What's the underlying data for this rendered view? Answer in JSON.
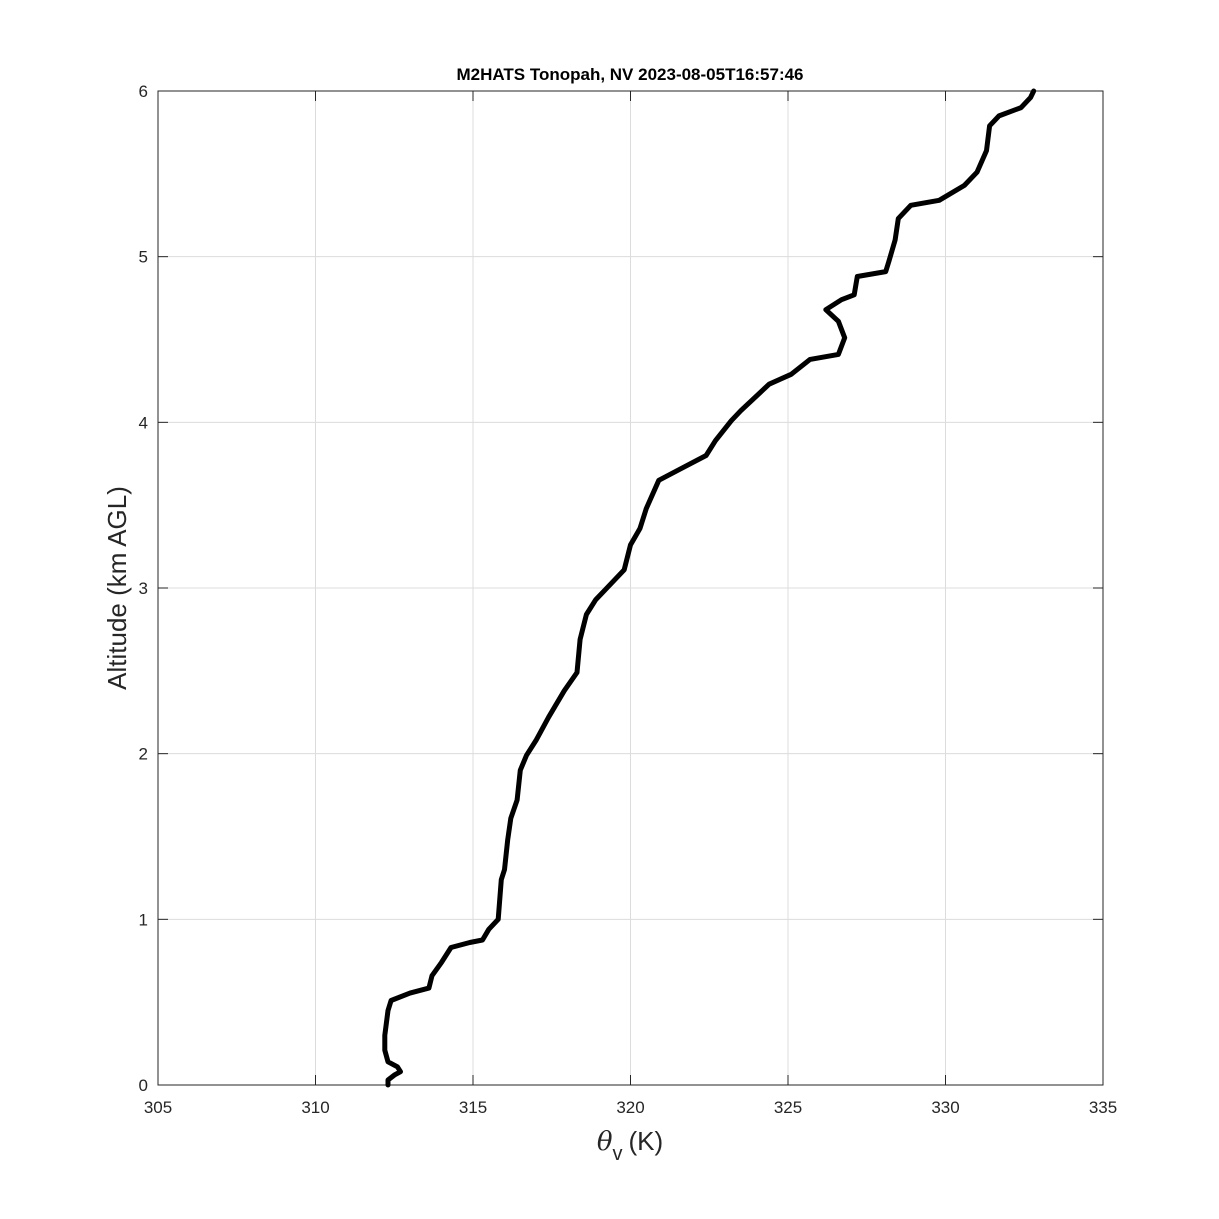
{
  "chart_data": {
    "type": "line",
    "title": "M2HATS Tonopah, NV 2023-08-05T16:57:46",
    "xlabel_symbol": "θ",
    "xlabel_subscript": "v",
    "xlabel_unit": "(K)",
    "ylabel": "Altitude (km AGL)",
    "xlim": [
      305,
      335
    ],
    "ylim": [
      0,
      6
    ],
    "xticks": [
      "305",
      "310",
      "315",
      "320",
      "325",
      "330",
      "335"
    ],
    "yticks": [
      "0",
      "1",
      "2",
      "3",
      "4",
      "5",
      "6"
    ],
    "grid": true,
    "line_color": "#000000",
    "series": [
      {
        "x": [
          312.3,
          312.3,
          312.5,
          312.7,
          312.6,
          312.3,
          312.2,
          312.2,
          312.3,
          312.4,
          313.0,
          313.6,
          313.7,
          314.0,
          314.3,
          314.9,
          315.3,
          315.5,
          315.8,
          315.9,
          316.0,
          316.1,
          316.2,
          316.4,
          316.5,
          316.7,
          317.0,
          317.4,
          317.9,
          318.3,
          318.4,
          318.6,
          318.9,
          319.2,
          319.8,
          320.0,
          320.3,
          320.5,
          320.9,
          321.6,
          322.4,
          322.7,
          323.2,
          323.5,
          324.4,
          325.1,
          325.7,
          326.6,
          326.8,
          326.6,
          326.2,
          326.7,
          327.1,
          327.2,
          328.1,
          328.2,
          328.4,
          328.5,
          328.9,
          329.8,
          330.6,
          331.0,
          331.3,
          331.4,
          331.7,
          332.4,
          332.7,
          332.8
        ],
        "y": [
          0,
          0.03,
          0.06,
          0.08,
          0.11,
          0.14,
          0.21,
          0.3,
          0.45,
          0.51,
          0.555,
          0.585,
          0.66,
          0.74,
          0.83,
          0.86,
          0.875,
          0.94,
          1.0,
          1.24,
          1.3,
          1.48,
          1.61,
          1.72,
          1.9,
          1.99,
          2.08,
          2.22,
          2.38,
          2.49,
          2.69,
          2.84,
          2.93,
          2.99,
          3.11,
          3.26,
          3.36,
          3.48,
          3.65,
          3.72,
          3.8,
          3.89,
          4.01,
          4.07,
          4.23,
          4.29,
          4.38,
          4.41,
          4.51,
          4.61,
          4.68,
          4.74,
          4.77,
          4.88,
          4.91,
          4.97,
          5.1,
          5.23,
          5.31,
          5.34,
          5.43,
          5.51,
          5.64,
          5.79,
          5.85,
          5.9,
          5.96,
          6.0
        ]
      }
    ]
  }
}
